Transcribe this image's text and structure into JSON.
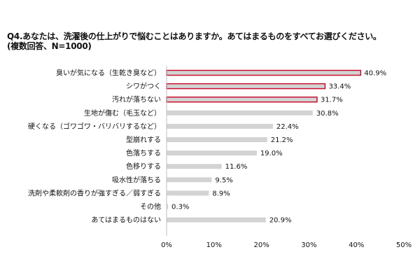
{
  "chart_data": {
    "type": "bar",
    "orientation": "horizontal",
    "title": "Q4.あなたは、洗濯後の仕上がりで悩むことはありますか。あてはまるものをすべてお選びください。",
    "subtitle": "(複数回答、N=1000)",
    "categories": [
      "臭いが気になる（生乾き臭など）",
      "シワがつく",
      "汚れが落ちない",
      "生地が傷む（毛玉など）",
      "硬くなる（ゴワゴワ・バリバリするなど）",
      "型崩れする",
      "色落ちする",
      "色移りする",
      "吸水性が落ちる",
      "洗剤や柔軟剤の香りが強すぎる／弱すぎる",
      "その他",
      "あてはまるものはない"
    ],
    "values": [
      40.9,
      33.4,
      31.7,
      30.8,
      22.4,
      21.2,
      19.0,
      11.6,
      9.5,
      8.9,
      0.3,
      20.9
    ],
    "value_labels": [
      "40.9%",
      "33.4%",
      "31.7%",
      "30.8%",
      "22.4%",
      "21.2%",
      "19.0%",
      "11.6%",
      "9.5%",
      "8.9%",
      "0.3%",
      "20.9%"
    ],
    "highlighted": [
      true,
      true,
      true,
      false,
      false,
      false,
      false,
      false,
      false,
      false,
      false,
      false
    ],
    "xlim": [
      0,
      50
    ],
    "xticks": [
      "0%",
      "10%",
      "20%",
      "30%",
      "40%",
      "50%"
    ],
    "xlabel": "",
    "ylabel": "",
    "grid": false,
    "colors": {
      "bar": "#d3d3d3",
      "highlight_fill": "#d3d3d3",
      "highlight_border": "#c8102e",
      "axis": "#bfbfbf"
    }
  }
}
